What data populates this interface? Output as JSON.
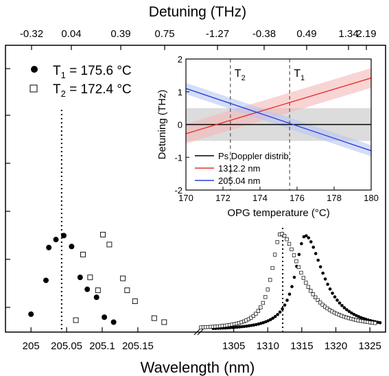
{
  "figure": {
    "top_axis_title": "Detuning (THz)",
    "bottom_axis_title": "Wavelength (nm)",
    "top_ticks_left": [
      "-0.32",
      "0.04",
      "0.39",
      "0.75"
    ],
    "top_ticks_right": [
      "-1.27",
      "-0.38",
      "0.49",
      "1.34",
      "2.19"
    ],
    "legend": [
      {
        "name": "T",
        "sub": "1",
        "value": " = 175.6 °C",
        "marker": "filled-circle"
      },
      {
        "name": "T",
        "sub": "2",
        "value": " = 172.4 °C",
        "marker": "open-square"
      }
    ]
  },
  "chart_data": [
    {
      "type": "scatter",
      "panel": "main-left",
      "xlabel": "Wavelength (nm)",
      "xlim": [
        204.995,
        205.205
      ],
      "ylim": [
        0,
        1.05
      ],
      "xticks": [
        "205",
        "205.05",
        "205.1",
        "205.15"
      ],
      "xtick_values": [
        205.0,
        205.05,
        205.1,
        205.15
      ],
      "vline_dotted": 205.043,
      "series": [
        {
          "marker": "filled-circle",
          "x": [
            205.0,
            205.021,
            205.025,
            205.035,
            205.046,
            205.057,
            205.069,
            205.079,
            205.092,
            205.103,
            205.116
          ],
          "y": [
            0.18,
            0.52,
            0.85,
            0.93,
            0.97,
            0.86,
            0.55,
            0.43,
            0.35,
            0.15,
            0.1
          ]
        },
        {
          "marker": "open-square",
          "x": [
            205.063,
            205.073,
            205.083,
            205.094,
            205.101,
            205.11,
            205.129,
            205.135,
            205.146,
            205.173,
            205.187
          ],
          "y": [
            0.12,
            0.78,
            0.55,
            0.42,
            0.98,
            0.88,
            0.54,
            0.42,
            0.31,
            0.14,
            0.1
          ]
        }
      ]
    },
    {
      "type": "scatter",
      "panel": "main-right",
      "xlabel": "Wavelength (nm)",
      "xlim": [
        1300.0,
        1327.0
      ],
      "ylim": [
        0,
        1.05
      ],
      "xticks": [
        "1305",
        "1310",
        "1315",
        "1320",
        "1325"
      ],
      "xtick_values": [
        1305,
        1310,
        1315,
        1320,
        1325
      ],
      "vline_dotted": 1312.2,
      "series": [
        {
          "marker": "filled-circle",
          "peak_x": 1315.5,
          "peak_y": 0.97,
          "half_width_left": 1.8,
          "half_width_right": 3.2,
          "x_start": 1302.0,
          "x_end": 1326.5,
          "step": 0.35,
          "baseline": 0.02
        },
        {
          "marker": "open-square",
          "peak_x": 1311.9,
          "peak_y": 0.99,
          "half_width_left": 1.6,
          "half_width_right": 3.6,
          "x_start": 1300.2,
          "x_end": 1326.0,
          "step": 0.35,
          "baseline": 0.03
        }
      ]
    },
    {
      "type": "line",
      "panel": "inset",
      "xlabel": "OPG temperature (°C)",
      "ylabel": "Detuning (THz)",
      "xlim": [
        170,
        180
      ],
      "ylim": [
        -2,
        2
      ],
      "xticks": [
        "170",
        "172",
        "174",
        "176",
        "178",
        "180"
      ],
      "xtick_values": [
        170,
        172,
        174,
        176,
        178,
        180
      ],
      "yticks": [
        "-2",
        "-1",
        "0",
        "1",
        "2"
      ],
      "ytick_values": [
        -2,
        -1,
        0,
        1,
        2
      ],
      "vlines": [
        {
          "x": 172.4,
          "label": "T",
          "sub": "2"
        },
        {
          "x": 175.6,
          "label": "T",
          "sub": "1"
        }
      ],
      "gray_band": [
        -0.5,
        0.5
      ],
      "series": [
        {
          "name": "Ps Doppler distrib.",
          "color": "#000000",
          "x": [
            170,
            180
          ],
          "y": [
            0,
            0
          ]
        },
        {
          "name": "1312.2 nm",
          "color": "#e8302a",
          "band_color": "#f5b7b7",
          "x": [
            170,
            180
          ],
          "y": [
            -0.28,
            1.42
          ],
          "band": 0.3
        },
        {
          "name": "205.04 nm",
          "color": "#2a3fe0",
          "band_color": "#b9c6f2",
          "x": [
            170,
            180
          ],
          "y": [
            1.1,
            -0.8
          ],
          "band": 0.17
        }
      ]
    }
  ]
}
